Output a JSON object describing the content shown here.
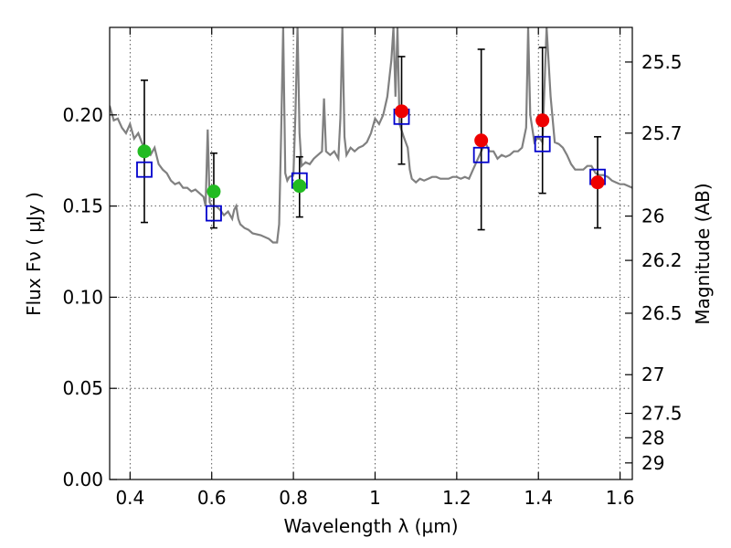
{
  "chart_data": {
    "type": "scatter",
    "xlabel": "Wavelength  λ (μm)",
    "ylabel": "Flux  Fν  ( μJy )",
    "y2label": "Magnitude (AB)",
    "xlim": [
      0.35,
      1.63
    ],
    "ylim": [
      0.0,
      0.248
    ],
    "grid": true,
    "x_ticks": [
      0.4,
      0.6,
      0.8,
      1.0,
      1.2,
      1.4,
      1.6
    ],
    "x_tick_labels": [
      "0.4",
      "0.6",
      "0.8",
      "1",
      "1.2",
      "1.4",
      "1.6"
    ],
    "y_ticks": [
      0.0,
      0.05,
      0.1,
      0.15,
      0.2
    ],
    "y_tick_labels": [
      "0.00",
      "0.05",
      "0.10",
      "0.15",
      "0.20"
    ],
    "mag_ticks": [
      {
        "label": "25.5",
        "flux": 0.229
      },
      {
        "label": "25.7",
        "flux": 0.19
      },
      {
        "label": "26",
        "flux": 0.1445
      },
      {
        "label": "26.2",
        "flux": 0.1202
      },
      {
        "label": "26.5",
        "flux": 0.0912
      },
      {
        "label": "27",
        "flux": 0.0575
      },
      {
        "label": "27.5",
        "flux": 0.0363
      },
      {
        "label": "28",
        "flux": 0.0229
      },
      {
        "label": "29",
        "flux": 0.0091
      }
    ],
    "colors": {
      "model": "#808080",
      "model_points": "#0000cc",
      "green": "#22bb22",
      "red": "#ee0000",
      "errorbar": "#000000"
    },
    "model_spectrum": {
      "x": [
        0.35,
        0.36,
        0.37,
        0.38,
        0.39,
        0.4,
        0.41,
        0.42,
        0.43,
        0.44,
        0.45,
        0.46,
        0.47,
        0.48,
        0.49,
        0.5,
        0.51,
        0.52,
        0.53,
        0.54,
        0.55,
        0.56,
        0.57,
        0.58,
        0.585,
        0.59,
        0.595,
        0.6,
        0.61,
        0.62,
        0.63,
        0.64,
        0.65,
        0.655,
        0.66,
        0.665,
        0.67,
        0.68,
        0.69,
        0.7,
        0.72,
        0.74,
        0.75,
        0.76,
        0.765,
        0.77,
        0.775,
        0.78,
        0.785,
        0.79,
        0.8,
        0.805,
        0.81,
        0.815,
        0.82,
        0.83,
        0.84,
        0.85,
        0.86,
        0.87,
        0.875,
        0.88,
        0.89,
        0.9,
        0.91,
        0.915,
        0.92,
        0.925,
        0.93,
        0.94,
        0.95,
        0.96,
        0.97,
        0.98,
        0.99,
        1.0,
        1.01,
        1.02,
        1.03,
        1.04,
        1.045,
        1.05,
        1.055,
        1.06,
        1.07,
        1.08,
        1.085,
        1.09,
        1.1,
        1.11,
        1.12,
        1.13,
        1.14,
        1.15,
        1.16,
        1.17,
        1.18,
        1.19,
        1.2,
        1.21,
        1.22,
        1.23,
        1.24,
        1.25,
        1.26,
        1.27,
        1.28,
        1.29,
        1.3,
        1.31,
        1.32,
        1.33,
        1.34,
        1.35,
        1.36,
        1.37,
        1.375,
        1.38,
        1.39,
        1.4,
        1.41,
        1.42,
        1.43,
        1.44,
        1.45,
        1.46,
        1.47,
        1.48,
        1.49,
        1.5,
        1.51,
        1.52,
        1.53,
        1.54,
        1.55,
        1.56,
        1.57,
        1.58,
        1.59,
        1.6,
        1.61,
        1.62,
        1.63
      ],
      "y": [
        0.205,
        0.197,
        0.198,
        0.193,
        0.19,
        0.195,
        0.187,
        0.19,
        0.184,
        0.18,
        0.178,
        0.182,
        0.173,
        0.17,
        0.168,
        0.164,
        0.162,
        0.163,
        0.16,
        0.16,
        0.158,
        0.159,
        0.157,
        0.155,
        0.15,
        0.192,
        0.152,
        0.15,
        0.15,
        0.148,
        0.145,
        0.147,
        0.143,
        0.148,
        0.15,
        0.143,
        0.14,
        0.138,
        0.137,
        0.135,
        0.134,
        0.132,
        0.13,
        0.13,
        0.14,
        0.19,
        0.248,
        0.168,
        0.164,
        0.166,
        0.167,
        0.2,
        0.248,
        0.19,
        0.172,
        0.174,
        0.173,
        0.176,
        0.178,
        0.18,
        0.209,
        0.18,
        0.178,
        0.18,
        0.176,
        0.198,
        0.248,
        0.188,
        0.178,
        0.182,
        0.18,
        0.182,
        0.183,
        0.185,
        0.19,
        0.198,
        0.195,
        0.2,
        0.21,
        0.23,
        0.248,
        0.21,
        0.248,
        0.195,
        0.188,
        0.182,
        0.17,
        0.165,
        0.163,
        0.165,
        0.164,
        0.165,
        0.166,
        0.166,
        0.165,
        0.165,
        0.165,
        0.166,
        0.166,
        0.165,
        0.166,
        0.165,
        0.17,
        0.175,
        0.18,
        0.185,
        0.18,
        0.18,
        0.176,
        0.178,
        0.177,
        0.178,
        0.18,
        0.18,
        0.182,
        0.193,
        0.248,
        0.2,
        0.185,
        0.188,
        0.185,
        0.248,
        0.21,
        0.185,
        0.184,
        0.182,
        0.178,
        0.173,
        0.17,
        0.17,
        0.17,
        0.172,
        0.172,
        0.168,
        0.167,
        0.167,
        0.166,
        0.164,
        0.163,
        0.162,
        0.162,
        0.161,
        0.16
      ]
    },
    "model_points": {
      "x": [
        0.435,
        0.605,
        0.815,
        1.065,
        1.26,
        1.41,
        1.545
      ],
      "y": [
        0.17,
        0.146,
        0.164,
        0.199,
        0.178,
        0.184,
        0.166
      ]
    },
    "observed_green": {
      "x": [
        0.435,
        0.605,
        0.815
      ],
      "y": [
        0.18,
        0.158,
        0.161
      ],
      "err_low": [
        0.141,
        0.138,
        0.144
      ],
      "err_high": [
        0.219,
        0.179,
        0.177
      ]
    },
    "observed_red": {
      "x": [
        1.065,
        1.26,
        1.41,
        1.545
      ],
      "y": [
        0.202,
        0.186,
        0.197,
        0.163
      ],
      "err_low": [
        0.173,
        0.137,
        0.157,
        0.138
      ],
      "err_high": [
        0.232,
        0.236,
        0.237,
        0.188
      ]
    }
  }
}
